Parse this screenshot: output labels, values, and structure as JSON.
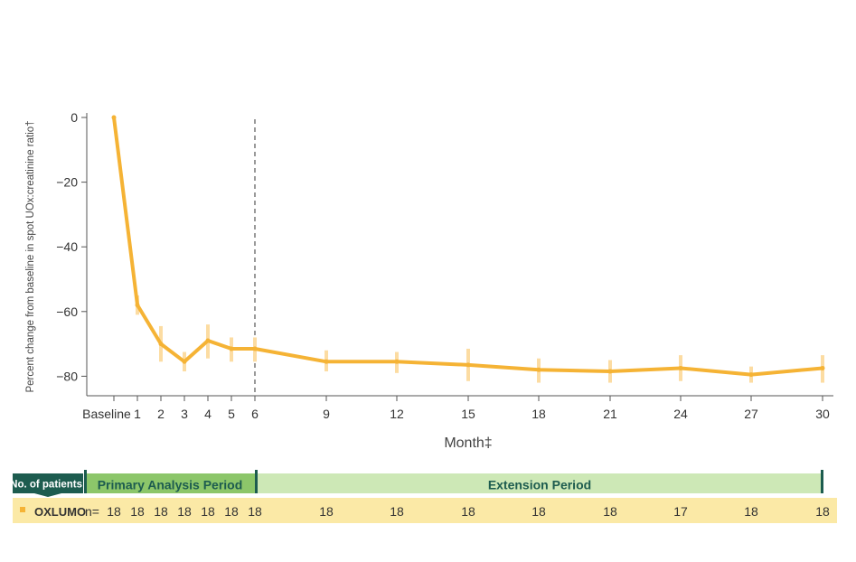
{
  "chart_data": {
    "type": "line",
    "ylabel": "Percent change from baseline in spot UOx:creatinine ratio†",
    "xlabel": "Month‡",
    "ylim": [
      -86,
      0
    ],
    "y_ticks": [
      0,
      -20,
      -40,
      -60,
      -80
    ],
    "y_tick_labels": [
      "0",
      "−20",
      "−40",
      "−60",
      "−80"
    ],
    "x_tick_labels": [
      "Baseline",
      "1",
      "2",
      "3",
      "4",
      "5",
      "6",
      "9",
      "12",
      "15",
      "18",
      "21",
      "24",
      "27",
      "30"
    ],
    "x_tick_values": [
      0,
      1,
      2,
      3,
      4,
      5,
      6,
      9,
      12,
      15,
      18,
      21,
      24,
      27,
      30
    ],
    "grid": false,
    "divider_month": 6,
    "series": [
      {
        "color": "#F5B335",
        "errorbar_color": "#FCDCA2",
        "x": [
          0,
          1,
          2,
          3,
          4,
          5,
          6,
          9,
          12,
          15,
          18,
          21,
          24,
          27,
          30
        ],
        "y": [
          0,
          -58,
          -70,
          -75.5,
          -69,
          -71.5,
          -71.5,
          -75.5,
          -75.5,
          -76.5,
          -78,
          -78.5,
          -77.5,
          -79.5,
          -77.5
        ],
        "err_low": [
          0,
          -61,
          -75.5,
          -78.5,
          -74.5,
          -75.5,
          -75.5,
          -78.5,
          -79,
          -81.5,
          -82,
          -82,
          -81.5,
          -82,
          -82
        ],
        "err_high": [
          0,
          -55,
          -64.5,
          -72.5,
          -64,
          -68,
          -68,
          -72,
          -72.5,
          -71.5,
          -74.5,
          -75,
          -73.5,
          -77,
          -73.5
        ]
      }
    ]
  },
  "periods": {
    "label": "No. of patients:",
    "primary": "Primary Analysis Period",
    "extension": "Extension Period",
    "primary_color": "#8CC66A",
    "extension_color": "#CDE8B6",
    "label_bg": "#1D5C4F",
    "text_color": "#1D5C4F"
  },
  "patients": {
    "drug": "OXLUMO",
    "n_label": "n=",
    "row_color": "#FBE9A6",
    "values": [
      "18",
      "18",
      "18",
      "18",
      "18",
      "18",
      "18",
      "18",
      "18",
      "18",
      "18",
      "18",
      "17",
      "18",
      "18"
    ]
  }
}
